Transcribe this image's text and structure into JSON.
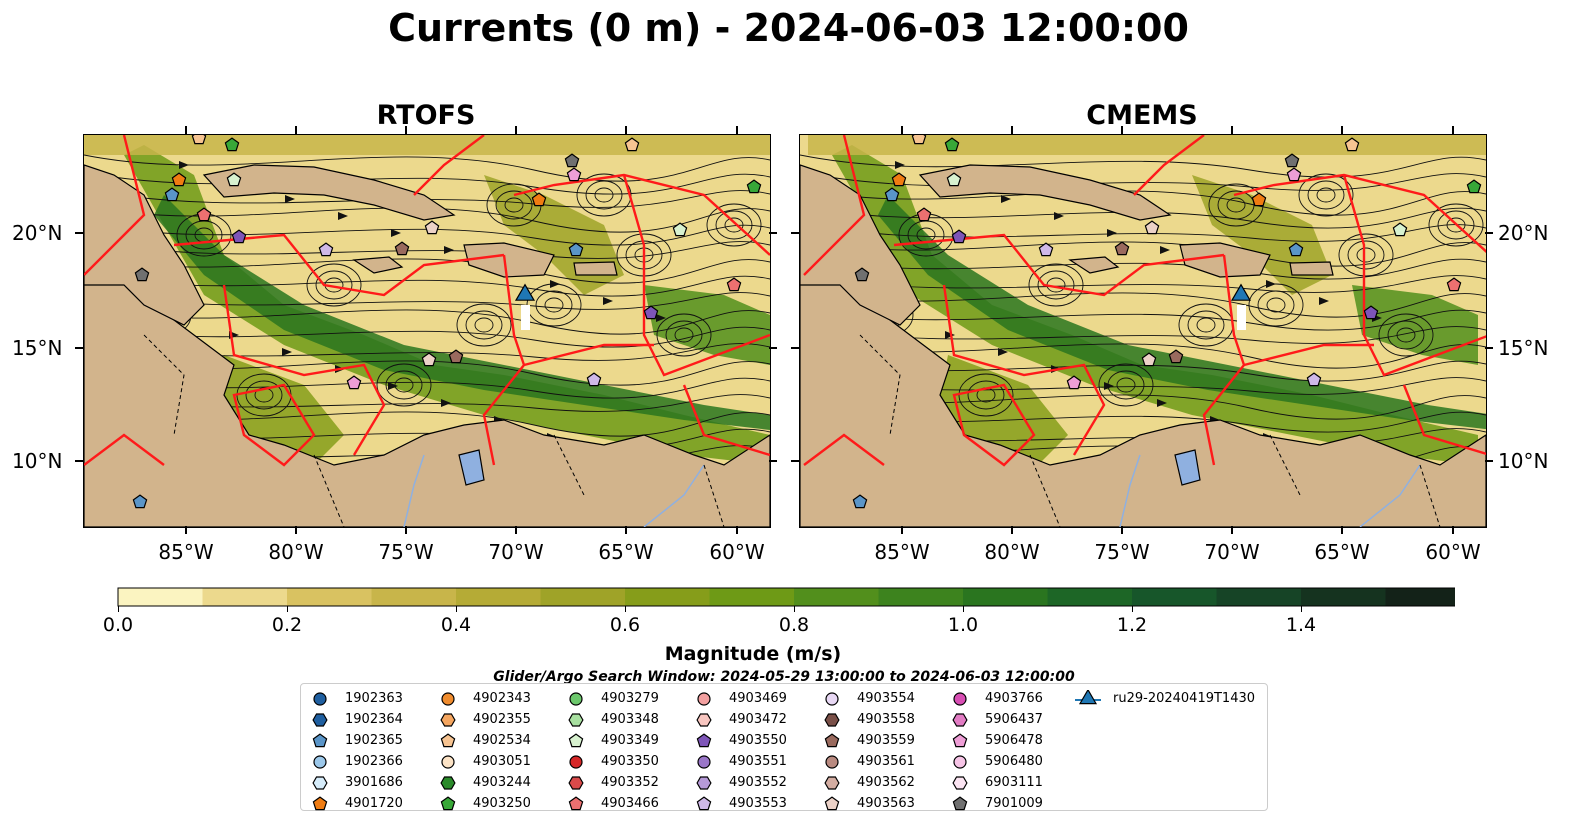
{
  "title": "Currents (0 m) - 2024-06-03 12:00:00",
  "panels": [
    {
      "title": "RTOFS"
    },
    {
      "title": "CMEMS"
    }
  ],
  "axes": {
    "lon_ticks": [
      "85°W",
      "80°W",
      "75°W",
      "70°W",
      "65°W",
      "60°W"
    ],
    "lat_ticks": [
      "20°N",
      "15°N",
      "10°N"
    ]
  },
  "colorbar": {
    "label": "Magnitude (m/s)",
    "ticks": [
      "0.0",
      "0.2",
      "0.4",
      "0.6",
      "0.8",
      "1.0",
      "1.2",
      "1.4"
    ],
    "colors": [
      "#fbf4c1",
      "#ecd98d",
      "#d9c261",
      "#c8b54a",
      "#b5ab36",
      "#9fa328",
      "#869d1a",
      "#6e9a16",
      "#528f1c",
      "#3d831e",
      "#2a751f",
      "#1d6626",
      "#17562a",
      "#164426",
      "#15331f",
      "#132218"
    ]
  },
  "search_window": "Glider/Argo Search Window: 2024-05-29 13:00:00 to 2024-06-03 12:00:00",
  "legend": [
    {
      "label": "1902363",
      "marker": "circle",
      "color": "#1f5fa0"
    },
    {
      "label": "1902364",
      "marker": "hexagon",
      "color": "#1f5fa0"
    },
    {
      "label": "1902365",
      "marker": "pentagon",
      "color": "#5a95c8"
    },
    {
      "label": "1902366",
      "marker": "circle",
      "color": "#9cc8ea"
    },
    {
      "label": "3901686",
      "marker": "hexagon",
      "color": "#d6ecfa"
    },
    {
      "label": "4901720",
      "marker": "pentagon",
      "color": "#f07c12"
    },
    {
      "label": "4902343",
      "marker": "circle",
      "color": "#f08c2e"
    },
    {
      "label": "4902355",
      "marker": "hexagon",
      "color": "#f5a660"
    },
    {
      "label": "4902534",
      "marker": "pentagon",
      "color": "#f7c492"
    },
    {
      "label": "4903051",
      "marker": "circle",
      "color": "#fce3c6"
    },
    {
      "label": "4903244",
      "marker": "hexagon",
      "color": "#2a8a2a"
    },
    {
      "label": "4903250",
      "marker": "pentagon",
      "color": "#38a838"
    },
    {
      "label": "4903279",
      "marker": "circle",
      "color": "#6cc86c"
    },
    {
      "label": "4903348",
      "marker": "hexagon",
      "color": "#a8e0a0"
    },
    {
      "label": "4903349",
      "marker": "pentagon",
      "color": "#d8f2d0"
    },
    {
      "label": "4903350",
      "marker": "circle",
      "color": "#d62728"
    },
    {
      "label": "4903352",
      "marker": "hexagon",
      "color": "#d94a4a"
    },
    {
      "label": "4903466",
      "marker": "pentagon",
      "color": "#ec7070"
    },
    {
      "label": "4903469",
      "marker": "circle",
      "color": "#f3a0a0"
    },
    {
      "label": "4903472",
      "marker": "hexagon",
      "color": "#f8c6c0"
    },
    {
      "label": "4903550",
      "marker": "pentagon",
      "color": "#7e55b8"
    },
    {
      "label": "4903551",
      "marker": "circle",
      "color": "#9a76c8"
    },
    {
      "label": "4903552",
      "marker": "hexagon",
      "color": "#b69ad8"
    },
    {
      "label": "4903553",
      "marker": "pentagon",
      "color": "#cfb8e8"
    },
    {
      "label": "4903554",
      "marker": "circle",
      "color": "#e8d8f4"
    },
    {
      "label": "4903558",
      "marker": "hexagon",
      "color": "#7a5048"
    },
    {
      "label": "4903559",
      "marker": "pentagon",
      "color": "#9a6a5e"
    },
    {
      "label": "4903561",
      "marker": "circle",
      "color": "#b98a80"
    },
    {
      "label": "4903562",
      "marker": "hexagon",
      "color": "#d4ada2"
    },
    {
      "label": "4903563",
      "marker": "pentagon",
      "color": "#ecd2c8"
    },
    {
      "label": "4903766",
      "marker": "circle",
      "color": "#d84eb4"
    },
    {
      "label": "5906437",
      "marker": "hexagon",
      "color": "#e27cc4"
    },
    {
      "label": "5906478",
      "marker": "pentagon",
      "color": "#ee9ed6"
    },
    {
      "label": "5906480",
      "marker": "circle",
      "color": "#f6c4e6"
    },
    {
      "label": "6903111",
      "marker": "hexagon",
      "color": "#fbe4f2"
    },
    {
      "label": "7901009",
      "marker": "pentagon",
      "color": "#707070"
    },
    {
      "label": "ru29-20240419T1430",
      "marker": "triangle-line",
      "color": "#1f77b4"
    }
  ]
}
